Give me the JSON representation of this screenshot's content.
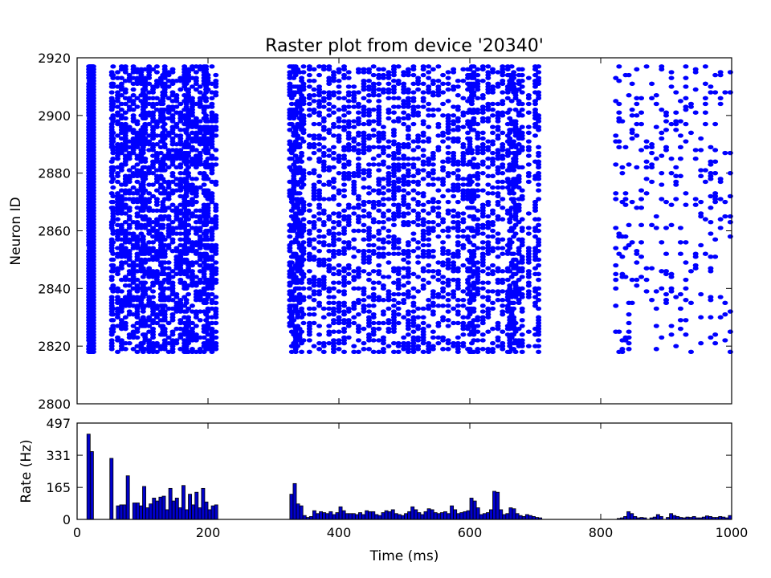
{
  "chart_data": [
    {
      "type": "scatter",
      "title": "Raster plot from device '20340'",
      "xlabel": "",
      "ylabel": "Neuron ID",
      "xlim": [
        0,
        1000
      ],
      "ylim": [
        2800,
        2920
      ],
      "yticks": [
        2800,
        2820,
        2840,
        2860,
        2880,
        2900,
        2920
      ],
      "marker_color": "#0000ff",
      "neuron_range": [
        2818,
        2917
      ],
      "spike_times_ms": [
        18,
        19,
        20,
        21,
        22,
        23,
        24,
        25,
        53,
        55,
        62,
        68,
        74,
        80,
        86,
        92,
        98,
        101,
        104,
        110,
        116,
        122,
        128,
        131,
        134,
        140,
        146,
        152,
        158,
        164,
        167,
        170,
        176,
        182,
        188,
        194,
        197,
        200,
        206,
        212,
        325,
        328,
        331,
        334,
        337,
        340,
        343,
        346,
        355,
        362,
        370,
        377,
        385,
        392,
        400,
        408,
        415,
        423,
        430,
        438,
        446,
        453,
        461,
        468,
        476,
        484,
        491,
        499,
        506,
        514,
        521,
        529,
        537,
        544,
        552,
        559,
        567,
        575,
        582,
        590,
        597,
        600,
        603,
        606,
        612,
        620,
        628,
        635,
        643,
        650,
        658,
        661,
        664,
        667,
        670,
        675,
        680,
        690,
        700,
        705,
        823,
        828,
        833,
        838,
        843,
        848,
        855,
        862,
        870,
        878,
        885,
        893,
        900,
        908,
        915,
        922,
        930,
        938,
        945,
        953,
        960,
        968,
        975,
        983,
        990,
        998
      ]
    },
    {
      "type": "bar",
      "title": "",
      "xlabel": "Time (ms)",
      "ylabel": "Rate (Hz)",
      "xlim": [
        0,
        1000
      ],
      "ylim": [
        0,
        497
      ],
      "xticks": [
        0,
        200,
        400,
        600,
        800,
        1000
      ],
      "yticks": [
        0,
        165,
        331,
        497
      ],
      "bin_width_ms": 5,
      "bar_color": "#0000cc",
      "bin_starts_ms": [
        15,
        20,
        50,
        60,
        65,
        70,
        75,
        85,
        90,
        95,
        100,
        105,
        110,
        115,
        120,
        125,
        130,
        135,
        140,
        145,
        150,
        155,
        160,
        165,
        170,
        175,
        180,
        185,
        190,
        195,
        200,
        205,
        210,
        325,
        330,
        335,
        340,
        345,
        350,
        355,
        360,
        365,
        370,
        375,
        380,
        385,
        390,
        395,
        400,
        405,
        410,
        415,
        420,
        425,
        430,
        435,
        440,
        445,
        450,
        455,
        460,
        465,
        470,
        475,
        480,
        485,
        490,
        495,
        500,
        505,
        510,
        515,
        520,
        525,
        530,
        535,
        540,
        545,
        550,
        555,
        560,
        565,
        570,
        575,
        580,
        585,
        590,
        595,
        600,
        605,
        610,
        615,
        620,
        625,
        630,
        635,
        640,
        645,
        650,
        655,
        660,
        665,
        670,
        675,
        680,
        685,
        690,
        695,
        700,
        705,
        825,
        830,
        835,
        840,
        845,
        850,
        855,
        860,
        865,
        875,
        880,
        885,
        890,
        900,
        905,
        910,
        915,
        920,
        925,
        930,
        935,
        940,
        945,
        950,
        955,
        960,
        965,
        970,
        975,
        980,
        985,
        990,
        995
      ],
      "values": [
        440,
        350,
        315,
        70,
        75,
        75,
        225,
        85,
        85,
        70,
        170,
        60,
        80,
        110,
        95,
        115,
        120,
        50,
        160,
        95,
        110,
        60,
        175,
        50,
        130,
        75,
        140,
        60,
        160,
        90,
        50,
        70,
        75,
        130,
        185,
        80,
        70,
        20,
        10,
        15,
        45,
        30,
        40,
        35,
        30,
        40,
        25,
        35,
        65,
        45,
        30,
        30,
        30,
        25,
        35,
        25,
        45,
        40,
        40,
        25,
        20,
        35,
        45,
        40,
        50,
        30,
        25,
        20,
        30,
        40,
        65,
        50,
        35,
        25,
        40,
        55,
        50,
        35,
        30,
        35,
        40,
        30,
        70,
        50,
        30,
        35,
        40,
        45,
        110,
        95,
        60,
        25,
        30,
        35,
        50,
        145,
        140,
        50,
        25,
        30,
        60,
        55,
        30,
        20,
        15,
        25,
        20,
        15,
        10,
        8,
        5,
        8,
        15,
        40,
        30,
        15,
        8,
        10,
        8,
        8,
        12,
        25,
        15,
        10,
        30,
        20,
        15,
        10,
        8,
        12,
        10,
        15,
        8,
        8,
        12,
        18,
        15,
        10,
        10,
        15,
        12,
        8,
        20
      ]
    }
  ]
}
